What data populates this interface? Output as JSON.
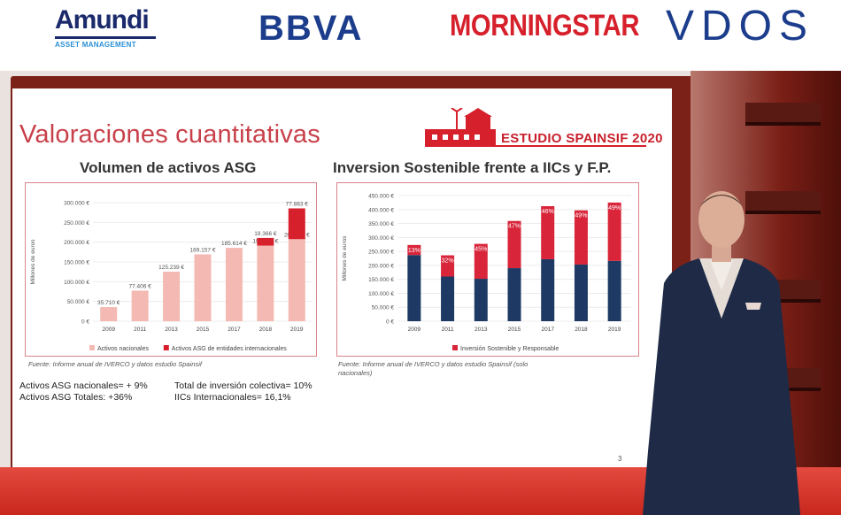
{
  "sponsors": {
    "amundi_name": "Amundi",
    "amundi_sub": "ASSET MANAGEMENT",
    "bbva": "BBVA",
    "morningstar": "MORNINGSTAR",
    "vdos": "VDOS"
  },
  "slide": {
    "title": "Valoraciones cuantitativas",
    "study_label": "ESTUDIO SPAINSIF 2020",
    "page_number": "3",
    "left": {
      "heading": "Volumen de activos ASG",
      "source": "Fuente: Informe anual de IVERCO y datos estudio Spainsif",
      "stats": [
        "Activos ASG nacionales= + 9%",
        "Activos ASG Totales: +36%"
      ]
    },
    "right": {
      "heading": "Inversion Sostenible frente a IICs y F.P.",
      "source": "Fuente: Informe anual de IVERCO y datos estudio Spainsif (solo nacionales)",
      "stats": [
        "Total de inversión colectiva= 10%",
        "IICs Internacionales= 16,1%"
      ]
    }
  },
  "colors": {
    "accent_red": "#d6202c",
    "title_red": "#c8404a",
    "light_pink": "#f4b9b2",
    "navy": "#1e3a64",
    "bar_red": "#d9253a"
  },
  "chart_data": [
    {
      "type": "bar",
      "stacked": true,
      "title": "Volumen de activos ASG",
      "ylabel": "Millones de euros",
      "categories": [
        "2009",
        "2011",
        "2013",
        "2015",
        "2017",
        "2018",
        "2019"
      ],
      "ylim": [
        0,
        300000
      ],
      "yticks": [
        "0 €",
        "50.000 €",
        "100.000 €",
        "150.000 €",
        "200.000 €",
        "250.000 €",
        "300.000 €"
      ],
      "series": [
        {
          "name": "Activos nacionales",
          "values": [
            35710,
            77406,
            125239,
            169157,
            185614,
            191278,
            207571
          ],
          "labels": [
            "35.710 €",
            "77.406 €",
            "125.239 €",
            "169.157 €",
            "185.614 €",
            "191.278 €",
            "207.571 €"
          ]
        },
        {
          "name": "Activos ASG de entidades internacionales",
          "values": [
            0,
            0,
            0,
            0,
            0,
            19366,
            77883
          ],
          "labels": [
            "",
            "",
            "",
            "",
            "",
            "19.366 €",
            "77.883 €"
          ]
        }
      ],
      "legend": "bottom"
    },
    {
      "type": "bar",
      "stacked": true,
      "title": "Inversion Sostenible frente a IICs y F.P.",
      "ylabel": "Millones de euros",
      "categories": [
        "2009",
        "2011",
        "2013",
        "2015",
        "2017",
        "2018",
        "2019"
      ],
      "ylim": [
        0,
        450000
      ],
      "yticks": [
        "0 €",
        "50.000 €",
        "100.000 €",
        "150.000 €",
        "200.000 €",
        "250.000 €",
        "300.000 €",
        "350.000 €",
        "400.000 €",
        "450.000 €"
      ],
      "series": [
        {
          "name": "",
          "values": [
            237000,
            160000,
            152000,
            190000,
            222000,
            203000,
            216000
          ]
        },
        {
          "name": "Inversión Sostenible y Responsable",
          "values": [
            36000,
            76000,
            125000,
            169000,
            190000,
            194000,
            209000
          ],
          "labels": [
            "13%",
            "32%",
            "45%",
            "47%",
            "46%",
            "49%",
            "49%"
          ]
        }
      ],
      "legend": "bottom"
    }
  ]
}
